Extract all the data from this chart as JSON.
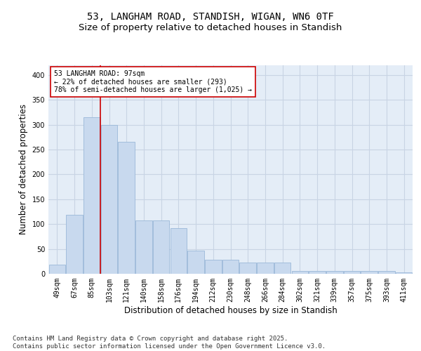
{
  "title1": "53, LANGHAM ROAD, STANDISH, WIGAN, WN6 0TF",
  "title2": "Size of property relative to detached houses in Standish",
  "xlabel": "Distribution of detached houses by size in Standish",
  "ylabel": "Number of detached properties",
  "bins": [
    "49sqm",
    "67sqm",
    "85sqm",
    "103sqm",
    "121sqm",
    "140sqm",
    "158sqm",
    "176sqm",
    "194sqm",
    "212sqm",
    "230sqm",
    "248sqm",
    "266sqm",
    "284sqm",
    "302sqm",
    "321sqm",
    "339sqm",
    "357sqm",
    "375sqm",
    "393sqm",
    "411sqm"
  ],
  "values": [
    18,
    118,
    315,
    300,
    265,
    108,
    108,
    92,
    47,
    28,
    28,
    22,
    22,
    22,
    5,
    5,
    5,
    5,
    5,
    5,
    3
  ],
  "bar_color": "#c8d9ee",
  "bar_edge_color": "#9ab8d8",
  "grid_color": "#c8d4e4",
  "background_color": "#e4edf7",
  "vline_x_index": 2,
  "vline_color": "#cc0000",
  "annotation_text": "53 LANGHAM ROAD: 97sqm\n← 22% of detached houses are smaller (293)\n78% of semi-detached houses are larger (1,025) →",
  "annotation_box_color": "#ffffff",
  "annotation_box_edge": "#cc0000",
  "ylim": [
    0,
    420
  ],
  "yticks": [
    0,
    50,
    100,
    150,
    200,
    250,
    300,
    350,
    400
  ],
  "footer": "Contains HM Land Registry data © Crown copyright and database right 2025.\nContains public sector information licensed under the Open Government Licence v3.0.",
  "title1_fontsize": 10,
  "title2_fontsize": 9.5,
  "axis_label_fontsize": 8.5,
  "tick_fontsize": 7,
  "footer_fontsize": 6.5
}
